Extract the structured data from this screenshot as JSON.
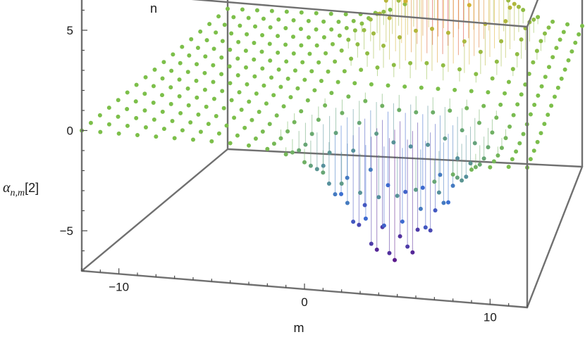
{
  "chart_data": {
    "type": "scatter",
    "subtype": "3d-discrete-stem-plot",
    "title": "",
    "xlabel": "m",
    "ylabel": "n",
    "zlabel": {
      "main": "α",
      "subscript": "n,m",
      "suffix": "[2]"
    },
    "x_ticks": [
      "−10",
      "0",
      "10"
    ],
    "x_tick_values": [
      -10,
      0,
      10
    ],
    "y_ticks": [
      "−5",
      "0",
      "5"
    ],
    "y_tick_values": [
      -5,
      0,
      5
    ],
    "z_ticks": [
      "−5",
      "0",
      "5"
    ],
    "z_tick_values": [
      -5,
      0,
      5
    ],
    "xlim": [
      -12,
      12
    ],
    "ylim": [
      -8,
      8
    ],
    "zlim": [
      -7,
      7
    ],
    "grid": false,
    "box": true,
    "color_scheme": {
      "low": "#5a1a8c",
      "mid_low": "#3b6fd4",
      "mid": "#7cbf4a",
      "mid_high": "#e0b030",
      "high": "#d62020"
    },
    "surface": {
      "description": "Discrete field on integer lattice m ∈ [−12,12], n ∈ [−8,8] with a positive lobe near (m≈4, n≈5) and a negative lobe near (m≈4, n≈−5); flat near zero elsewhere",
      "positive_peak": {
        "m": 4,
        "n": 5,
        "value": 6.5
      },
      "negative_peak": {
        "m": 4,
        "n": -5,
        "value": -6.5
      }
    }
  }
}
